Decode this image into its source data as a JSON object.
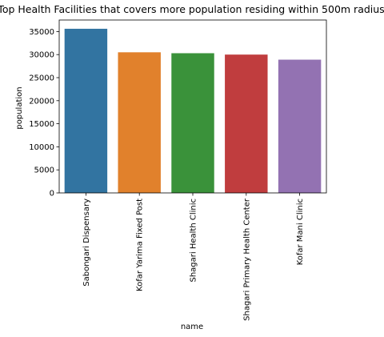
{
  "chart_data": {
    "type": "bar",
    "title": "Top Health Facilities that covers more population residing within 500m radius",
    "xlabel": "name",
    "ylabel": "population",
    "categories": [
      "Sabongari Dispensary",
      "Kofar Yarima Fixed Post",
      "Shagari Health Clinic",
      "Shagari Primary Health Center",
      "Kofar Mani Clinic"
    ],
    "values": [
      35600,
      30500,
      30300,
      30000,
      28900
    ],
    "colors": [
      "#3274a1",
      "#e1812c",
      "#3a923a",
      "#c03d3e",
      "#9372b2"
    ],
    "ylim": [
      0,
      37500
    ],
    "yticks": [
      0,
      5000,
      10000,
      15000,
      20000,
      25000,
      30000,
      35000
    ],
    "grid": false,
    "legend": "none"
  }
}
